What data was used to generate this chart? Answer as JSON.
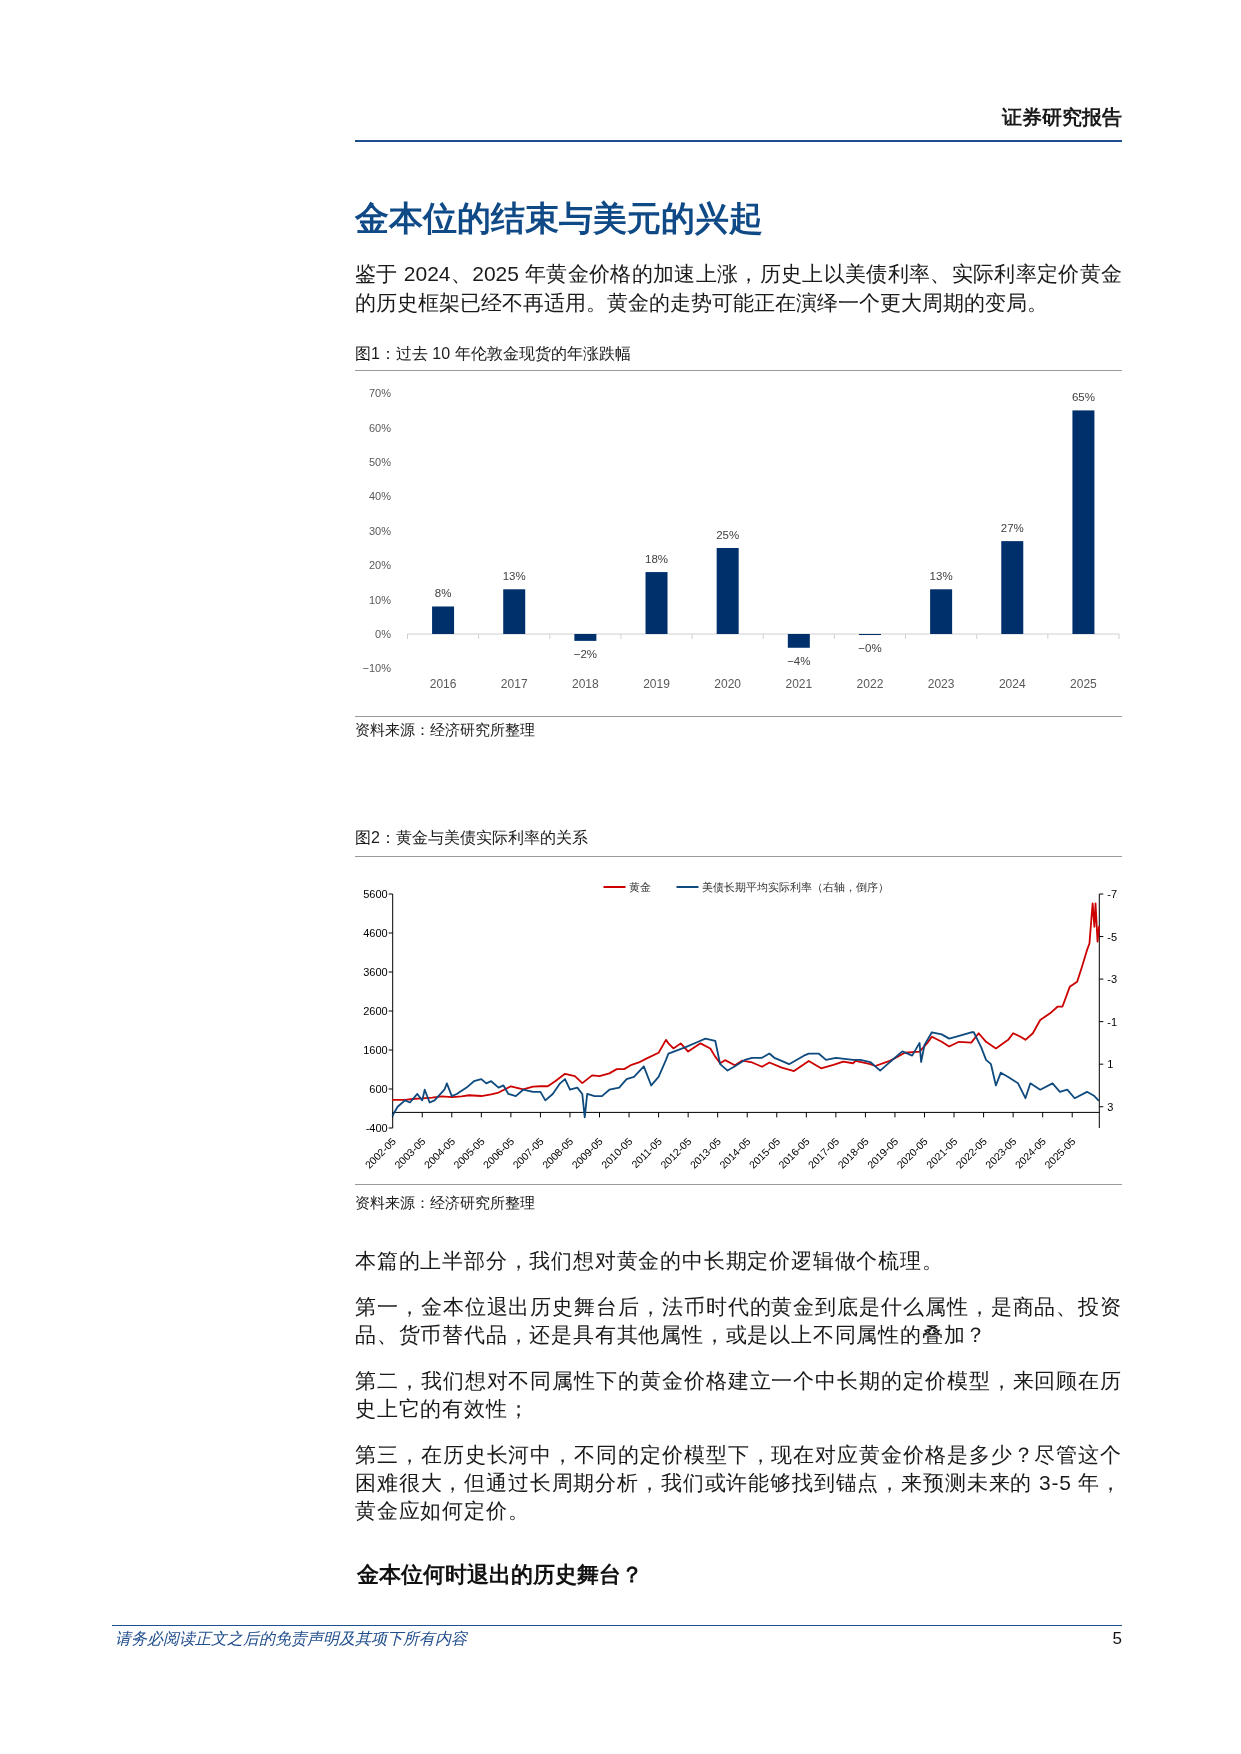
{
  "chart_data": [
    {
      "type": "other",
      "title": "金本位的结束与美元的兴起",
      "annotations": [
        "证券研究报告",
        "鉴于 2024、2025 年黄金价格的加速上涨，历史上以美债利率、实际利率定价黄金的历史框架已经不再适用。黄金的走势可能正在演绎一个更大周期的变局。"
      ]
    },
    {
      "type": "bar",
      "title": "图1：过去 10 年伦敦金现货的年涨跌幅",
      "categories": [
        "2016",
        "2017",
        "2018",
        "2019",
        "2020",
        "2021",
        "2022",
        "2023",
        "2024",
        "2025"
      ],
      "values": [
        8,
        13,
        -2,
        18,
        25,
        -4,
        -0.3,
        13,
        27,
        65
      ],
      "value_labels": [
        "8%",
        "13%",
        "−2%",
        "18%",
        "25%",
        "−4%",
        "−0%",
        "13%",
        "27%",
        "65%"
      ],
      "color": "#00306b",
      "ylim": [
        -10,
        70
      ],
      "yticks": [
        {
          "value": -10,
          "label": "−10%"
        },
        {
          "value": 0,
          "label": "0%"
        },
        {
          "value": 10,
          "label": "10%"
        },
        {
          "value": 20,
          "label": "20%"
        },
        {
          "value": 30,
          "label": "30%"
        },
        {
          "value": 40,
          "label": "40%"
        },
        {
          "value": 50,
          "label": "50%"
        },
        {
          "value": 60,
          "label": "60%"
        },
        {
          "value": 70,
          "label": "70%"
        }
      ],
      "annotations": [
        "资料来源：经济研究所整理"
      ]
    },
    {
      "type": "line",
      "title": "图2：黄金与美债实际利率的关系",
      "series": [
        {
          "name": "黄金",
          "color": "#cc0000",
          "x": [
            "2002-05",
            "2002-10",
            "2003-02",
            "2003-05",
            "2003-09",
            "2004-01",
            "2004-05",
            "2004-09",
            "2004-12",
            "2005-05",
            "2005-09",
            "2005-12",
            "2006-05",
            "2006-10",
            "2007-02",
            "2007-05",
            "2007-08",
            "2007-11",
            "2008-03",
            "2008-07",
            "2008-10",
            "2009-02",
            "2009-05",
            "2009-09",
            "2009-12",
            "2010-03",
            "2010-06",
            "2010-09",
            "2010-12",
            "2011-05",
            "2011-08",
            "2011-09",
            "2011-11",
            "2012-02",
            "2012-05",
            "2012-10",
            "2013-02",
            "2013-04",
            "2013-06",
            "2013-08",
            "2013-12",
            "2014-03",
            "2014-07",
            "2014-11",
            "2015-02",
            "2015-07",
            "2015-12",
            "2016-06",
            "2016-11",
            "2017-04",
            "2017-08",
            "2017-12",
            "2018-01",
            "2018-07",
            "2018-09",
            "2019-02",
            "2019-05",
            "2019-09",
            "2020-03",
            "2020-06",
            "2020-08",
            "2020-12",
            "2021-03",
            "2021-07",
            "2021-12",
            "2022-03",
            "2022-06",
            "2022-10",
            "2023-03",
            "2023-05",
            "2023-08",
            "2023-10",
            "2024-01",
            "2024-04",
            "2024-08",
            "2024-11",
            "2025-01",
            "2025-04",
            "2025-07",
            "2025-09",
            "2025-11",
            "2025-12",
            "2026-01-10",
            "2026-02-01",
            "2026-02-15",
            "2026-03-10",
            "2026-03-28"
          ],
          "values": [
            320,
            320,
            350,
            360,
            380,
            410,
            390,
            410,
            440,
            420,
            460,
            510,
            670,
            590,
            660,
            670,
            670,
            800,
            990,
            930,
            750,
            950,
            930,
            1000,
            1110,
            1110,
            1220,
            1280,
            1380,
            1530,
            1860,
            1770,
            1640,
            1770,
            1560,
            1770,
            1640,
            1430,
            1260,
            1340,
            1210,
            1330,
            1280,
            1170,
            1280,
            1150,
            1060,
            1320,
            1130,
            1220,
            1300,
            1260,
            1320,
            1240,
            1190,
            1300,
            1390,
            1530,
            1560,
            1770,
            1940,
            1810,
            1690,
            1810,
            1790,
            2030,
            1810,
            1640,
            1860,
            2030,
            1940,
            1860,
            2030,
            2370,
            2540,
            2710,
            2710,
            3220,
            3350,
            3740,
            4160,
            4330,
            5360,
            4760,
            5360,
            4380,
            4760
          ]
        },
        {
          "name": "美债长期平均实际利率（右轴，倒序）",
          "color": "#0e4a7e",
          "axis": "y2",
          "x": [
            "2002-05",
            "2002-07",
            "2002-10",
            "2002-12",
            "2003-03",
            "2003-05",
            "2003-06",
            "2003-08",
            "2003-10",
            "2004-02",
            "2004-03",
            "2004-05",
            "2004-07",
            "2004-11",
            "2005-02",
            "2005-05",
            "2005-07",
            "2005-09",
            "2005-12",
            "2006-02",
            "2006-04",
            "2006-07",
            "2006-10",
            "2007-02",
            "2007-05",
            "2007-07",
            "2007-10",
            "2008-01",
            "2008-03",
            "2008-05",
            "2008-08",
            "2008-10",
            "2008-11",
            "2008-12",
            "2009-03",
            "2009-06",
            "2009-09",
            "2010-01",
            "2010-04",
            "2010-07",
            "2010-11",
            "2011-02",
            "2011-05",
            "2011-08",
            "2011-09",
            "2012-04",
            "2012-10",
            "2012-12",
            "2013-04",
            "2013-06",
            "2013-09",
            "2013-12",
            "2014-04",
            "2014-07",
            "2014-11",
            "2015-02",
            "2015-04",
            "2015-06",
            "2015-10",
            "2016-01",
            "2016-04",
            "2016-06",
            "2016-10",
            "2017-01",
            "2017-05",
            "2017-12",
            "2018-03",
            "2018-07",
            "2018-11",
            "2019-02",
            "2019-05",
            "2019-08",
            "2019-12",
            "2020-03",
            "2020-03-20",
            "2020-05",
            "2020-08",
            "2020-12",
            "2021-03",
            "2021-06",
            "2021-12",
            "2022-01",
            "2022-04",
            "2022-06",
            "2022-08",
            "2022-10",
            "2022-12",
            "2023-03",
            "2023-07",
            "2023-10",
            "2023-12",
            "2024-04",
            "2024-09",
            "2024-12",
            "2025-03",
            "2025-06",
            "2025-11",
            "2026-02",
            "2026-03-20"
          ],
          "values": [
            3.4,
            3.0,
            2.7,
            2.8,
            2.4,
            2.7,
            2.2,
            2.8,
            2.7,
            2.2,
            1.9,
            2.5,
            2.4,
            2.1,
            1.8,
            1.7,
            1.9,
            1.8,
            2.1,
            2.0,
            2.4,
            2.5,
            2.2,
            2.3,
            2.3,
            2.7,
            2.4,
            1.9,
            1.7,
            2.2,
            2.1,
            2.4,
            3.5,
            2.4,
            2.5,
            2.5,
            2.2,
            2.1,
            1.7,
            1.6,
            1.1,
            2.0,
            1.6,
            0.8,
            0.5,
            0.2,
            -0.1,
            -0.2,
            -0.1,
            1.0,
            1.3,
            1.1,
            0.8,
            0.7,
            0.7,
            0.5,
            0.7,
            0.8,
            1.0,
            0.8,
            0.6,
            0.5,
            0.5,
            0.8,
            0.7,
            0.8,
            0.8,
            0.9,
            1.3,
            1.0,
            0.7,
            0.4,
            0.6,
            0.0,
            0.9,
            0.1,
            -0.5,
            -0.4,
            -0.2,
            -0.3,
            -0.5,
            -0.5,
            0.2,
            0.8,
            1.0,
            2.0,
            1.4,
            1.6,
            1.9,
            2.6,
            1.9,
            2.2,
            1.9,
            2.3,
            2.2,
            2.6,
            2.3,
            2.5,
            2.7
          ]
        }
      ],
      "xlim": [
        "2002-05",
        "2026-04"
      ],
      "xticks": [
        "2002-05",
        "2003-05",
        "2004-05",
        "2005-05",
        "2006-05",
        "2007-05",
        "2008-05",
        "2009-05",
        "2010-05",
        "2011-05",
        "2012-05",
        "2013-05",
        "2014-05",
        "2015-05",
        "2016-05",
        "2017-05",
        "2018-05",
        "2019-05",
        "2020-05",
        "2021-05",
        "2022-05",
        "2023-05",
        "2024-05",
        "2025-05"
      ],
      "ylim": [
        -400,
        5600
      ],
      "yticks": [
        -400,
        600,
        1600,
        2600,
        3600,
        4600,
        5600
      ],
      "y2lim": [
        4,
        -7
      ],
      "y2ticks": [
        -7,
        -5,
        -3,
        -1,
        1,
        3
      ],
      "legend": "top",
      "annotations": [
        "资料来源：经济研究所整理"
      ]
    },
    {
      "type": "other",
      "annotations": [
        "本篇的上半部分，我们想对黄金的中长期定价逻辑做个梳理。",
        "第一，金本位退出历史舞台后，法币时代的黄金到底是什么属性，是商品、投资品、货币替代品，还是具有其他属性，或是以上不同属性的叠加？",
        "第二，我们想对不同属性下的黄金价格建立一个中长期的定价模型，来回顾在历史上它的有效性；",
        "第三，在历史长河中，不同的定价模型下，现在对应黄金价格是多少？尽管这个困难很大，但通过长周期分析，我们或许能够找到锚点，来预测未来的 3-5 年，黄金应如何定价。"
      ]
    },
    {
      "type": "other",
      "title": "金本位何时退出的历史舞台？",
      "annotations": [
        "请务必阅读正文之后的免责声明及其项下所有内容",
        "5"
      ]
    }
  ]
}
